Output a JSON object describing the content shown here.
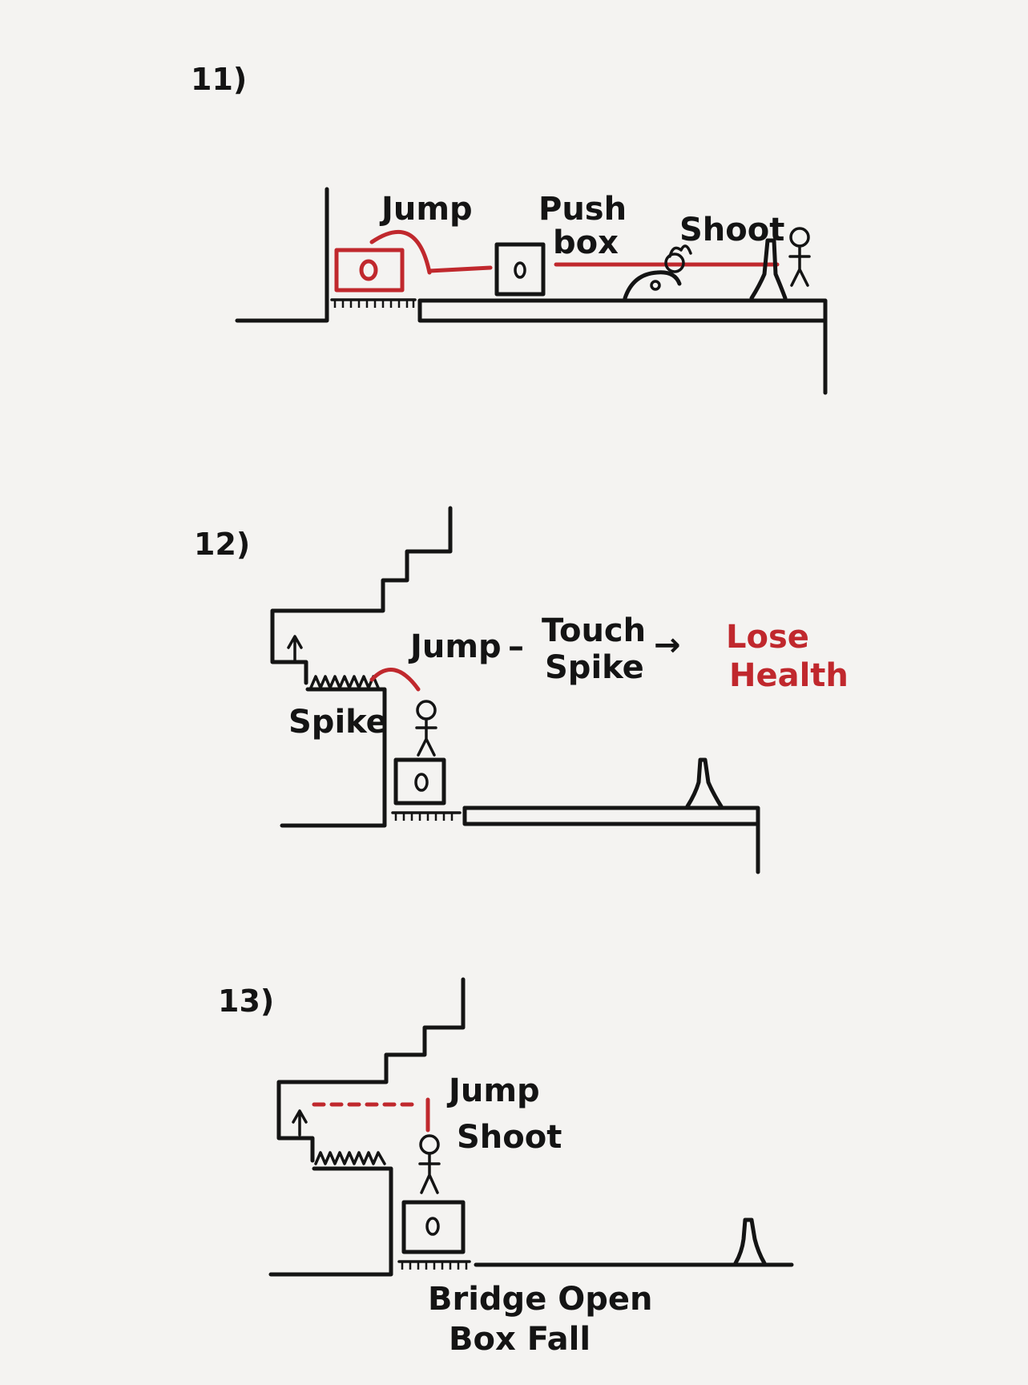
{
  "colors": {
    "ink": "#141414",
    "accent": "#c0282d",
    "paper": "#f4f3f1"
  },
  "panels": [
    {
      "number": "11)",
      "labels": {
        "jump": "Jump",
        "push": "Push",
        "box": "box",
        "shoot": "Shoot"
      }
    },
    {
      "number": "12)",
      "labels": {
        "jump": "Jump",
        "dash": "–",
        "touch": "Touch",
        "spike_verb": "Spike",
        "arrow": "→",
        "lose": "Lose",
        "health": "Health",
        "spike": "Spike"
      }
    },
    {
      "number": "13)",
      "labels": {
        "jump": "Jump",
        "shoot": "Shoot",
        "bridge_open": "Bridge Open",
        "box_fall": "Box Fall"
      }
    }
  ],
  "icons": [
    "stick-figure-icon",
    "box-icon",
    "spike-icon",
    "turret-icon",
    "goal-post-icon",
    "enemy-blob-icon",
    "up-arrow-icon"
  ]
}
